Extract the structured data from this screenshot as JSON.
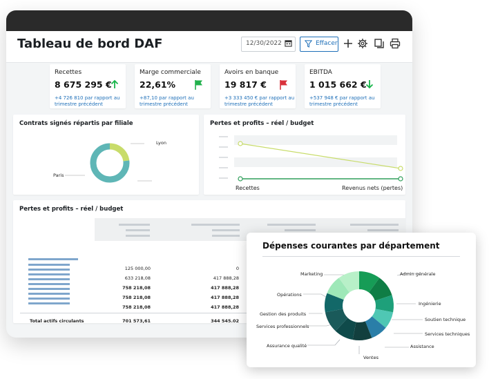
{
  "header": {
    "title": "Tableau de bord DAF",
    "date_value": "12/30/2022",
    "clear_label": "Effacer"
  },
  "kpis": [
    {
      "label": "Recettes",
      "value": "8 675 295 €",
      "delta": "+4 726 810 par rapport au trimestre précédent",
      "icon": "arrow-up-icon",
      "color": "#17b54a"
    },
    {
      "label": "Marge commerciale",
      "value": "22,61%",
      "delta": "+87,10 par rapport au trimestre précédent",
      "icon": "flag-icon",
      "color": "#22b14c"
    },
    {
      "label": "Avoirs en banque",
      "value": "19 817 €",
      "delta": "+3 333 450 € par rapport au trimestre précédent",
      "icon": "flag-icon",
      "color": "#d9323c"
    },
    {
      "label": "EBITDA",
      "value": "1 015 662 €",
      "delta": "+537 948 € par rapport au trimestre précédent",
      "icon": "arrow-down-icon",
      "color": "#17b54a"
    }
  ],
  "contracts": {
    "title": "Contrats signés répartis par filiale",
    "labels": [
      "Lyon",
      "Paris"
    ],
    "colors": [
      "#c8dc6a",
      "#5fb6b6"
    ]
  },
  "pl_chart": {
    "title": "Pertes et profits – réel / budget",
    "x_labels": [
      "Recettes",
      "Revenus nets (pertes)"
    ]
  },
  "pl_table": {
    "title": "Pertes et profits – réel / budget",
    "col1": [
      "125 000,00",
      "633 218,08",
      "758 218,08",
      "758 218,08",
      "758 218,08"
    ],
    "col2": [
      "0",
      "417 888,28",
      "417 888,28",
      "417 888,28",
      "417 888,28"
    ],
    "total_label": "Total actifs circulants",
    "total_col1": "701 573,61",
    "total_col2": "344 545.02"
  },
  "dept": {
    "title": "Dépenses courantes par département",
    "labels": [
      "Marketing",
      "Admin générale",
      "Opérations",
      "Ingénierie",
      "Gestion des produits",
      "Soutien technique",
      "Services professionnels",
      "Services techniques",
      "Assurance qualité",
      "Assistance",
      "Ventes"
    ]
  },
  "chart_data": [
    {
      "type": "pie",
      "title": "Contrats signés répartis par filiale",
      "labels": [
        "Lyon",
        "Paris"
      ],
      "values": [
        23,
        77
      ]
    },
    {
      "type": "line",
      "title": "Pertes et profits – réel / budget",
      "categories": [
        "Recettes",
        "Revenus nets (pertes)"
      ],
      "series": [
        {
          "values": [
            0.9,
            0.3
          ],
          "color": "#c8dc6a"
        },
        {
          "values": [
            0.05,
            0.05
          ],
          "color": "#2f9e5a"
        }
      ]
    },
    {
      "type": "pie",
      "title": "Dépenses courantes par département",
      "labels": [
        "Admin générale",
        "Ingénierie",
        "Soutien technique",
        "Services techniques",
        "Assistance",
        "Ventes",
        "Assurance qualité",
        "Services professionnels",
        "Gestion des produits",
        "Opérations",
        "Marketing"
      ],
      "values": [
        10,
        10,
        8,
        8,
        8,
        9,
        9,
        10,
        9,
        9,
        10
      ]
    }
  ]
}
